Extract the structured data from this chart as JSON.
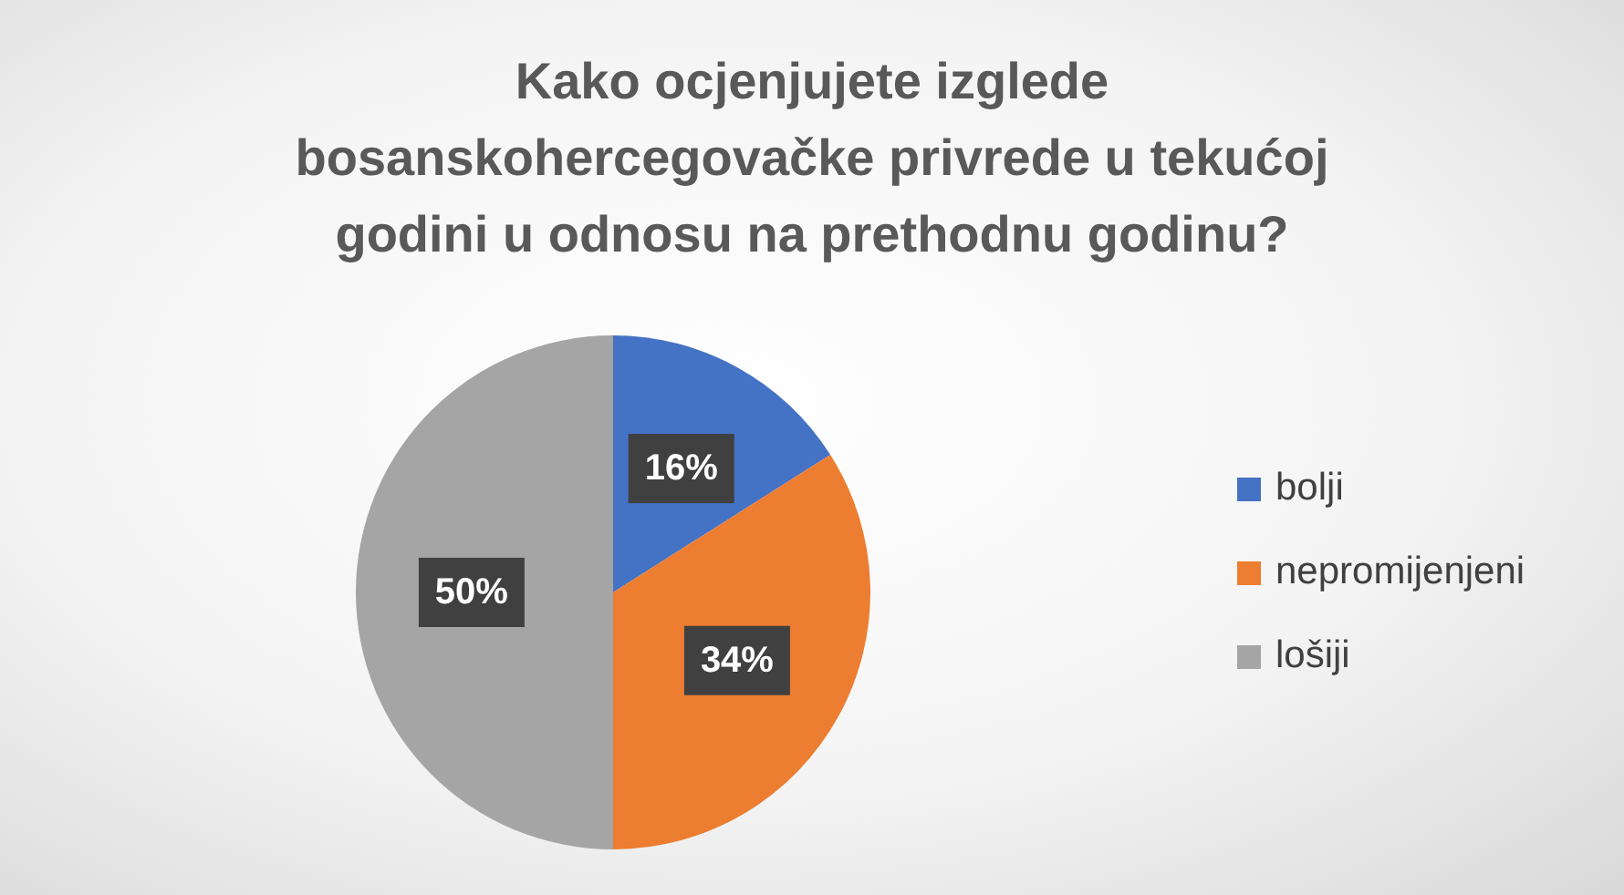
{
  "chart_data": {
    "type": "pie",
    "title": "Kako ocjenjujete izglede bosanskohercegovačke privrede u tekućoj godini u odnosu na prethodnu godinu?",
    "categories": [
      "bolji",
      "nepromijenjeni",
      "lošiji"
    ],
    "values": [
      16,
      34,
      50
    ],
    "colors": [
      "#4472c4",
      "#ed7d31",
      "#a5a5a5"
    ],
    "value_labels": [
      "16%",
      "34%",
      "50%"
    ],
    "legend": "right"
  }
}
